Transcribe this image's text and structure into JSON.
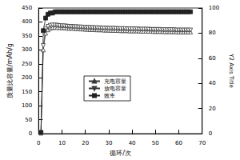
{
  "chart_data": {
    "type": "line",
    "x_label": "循环/次",
    "y_label": "质量比容量/mAh/g",
    "y2_label": "Y2 Axis Title",
    "x": [
      1,
      2,
      3,
      4,
      5,
      6,
      7,
      8,
      9,
      10,
      11,
      12,
      13,
      14,
      15,
      16,
      17,
      18,
      19,
      20,
      21,
      22,
      23,
      24,
      25,
      26,
      27,
      28,
      29,
      30,
      31,
      32,
      33,
      34,
      35,
      36,
      37,
      38,
      39,
      40,
      41,
      42,
      43,
      44,
      45,
      46,
      47,
      48,
      49,
      50,
      51,
      52,
      53,
      54,
      55,
      56,
      57,
      58,
      59,
      60,
      61,
      62,
      63,
      64,
      65
    ],
    "series": [
      {
        "name": "充电容量",
        "color": "#333333",
        "marker": "triangle",
        "values": [
          2,
          300,
          360,
          372,
          378,
          380,
          381,
          380,
          380,
          379,
          380,
          378,
          377,
          378,
          377,
          376,
          376,
          375,
          375,
          374,
          374,
          373,
          373,
          373,
          372,
          372,
          372,
          371,
          371,
          371,
          370,
          370,
          370,
          370,
          369,
          369,
          369,
          369,
          368,
          368,
          368,
          368,
          368,
          367,
          367,
          367,
          367,
          367,
          366,
          366,
          366,
          366,
          366,
          365,
          365,
          365,
          365,
          365,
          365,
          364,
          364,
          364,
          364,
          364,
          364
        ]
      },
      {
        "name": "放电容量",
        "color": "#333333",
        "marker": "triangle-down",
        "values": [
          3,
          315,
          375,
          384,
          388,
          389,
          389,
          388,
          387,
          386,
          386,
          385,
          384,
          384,
          383,
          383,
          382,
          382,
          381,
          381,
          380,
          380,
          380,
          379,
          379,
          379,
          378,
          378,
          378,
          377,
          377,
          377,
          377,
          376,
          376,
          376,
          376,
          375,
          375,
          375,
          375,
          375,
          374,
          374,
          374,
          374,
          374,
          373,
          373,
          373,
          373,
          373,
          372,
          372,
          372,
          372,
          372,
          372,
          371,
          371,
          371,
          371,
          371,
          371,
          371
        ]
      },
      {
        "name": "效率",
        "color": "#222222",
        "marker": "square",
        "axis": "y2",
        "values": [
          1,
          82,
          92,
          95,
          96,
          96,
          97,
          97,
          97,
          97,
          97,
          97,
          97,
          97,
          97,
          97,
          97,
          97,
          97,
          97,
          97,
          97,
          97,
          97,
          97,
          97,
          97,
          97,
          97,
          97,
          97,
          97,
          97,
          97,
          97,
          97,
          97,
          97,
          97,
          97,
          97,
          97,
          97,
          97,
          97,
          97,
          97,
          97,
          97,
          97,
          97,
          97,
          97,
          97,
          97,
          97,
          97,
          97,
          97,
          97,
          97,
          97,
          97,
          97,
          97
        ]
      }
    ],
    "xlim": [
      0,
      70
    ],
    "xticks": [
      0,
      10,
      20,
      30,
      40,
      50,
      60,
      70
    ],
    "ylim": [
      0,
      450
    ],
    "yticks": [
      0,
      50,
      100,
      150,
      200,
      250,
      300,
      350,
      400,
      450
    ],
    "y2lim": [
      0,
      100
    ],
    "y2ticks": [
      0,
      20,
      40,
      60,
      80,
      100
    ],
    "grid": false,
    "legend": "center"
  }
}
